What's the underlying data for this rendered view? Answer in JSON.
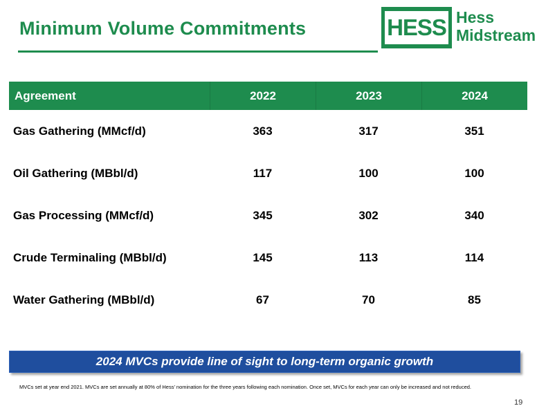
{
  "header": {
    "title": "Minimum Volume Commitments",
    "logo": {
      "box_text": "HESS",
      "line1": "Hess",
      "line2": "Midstream"
    }
  },
  "table": {
    "columns": [
      "Agreement",
      "2022",
      "2023",
      "2024"
    ],
    "rows": [
      [
        "Gas Gathering (MMcf/d)",
        "363",
        "317",
        "351"
      ],
      [
        "Oil Gathering (MBbl/d)",
        "117",
        "100",
        "100"
      ],
      [
        "Gas Processing (MMcf/d)",
        "345",
        "302",
        "340"
      ],
      [
        "Crude Terminaling (MBbl/d)",
        "145",
        "113",
        "114"
      ],
      [
        "Water Gathering (MBbl/d)",
        "67",
        "70",
        "85"
      ]
    ]
  },
  "callout": "2024 MVCs provide line of sight to long-term organic growth",
  "footnote": "MVCs set at year end 2021. MVCs are set annually at 80% of Hess’ nomination for the three years following each nomination. Once set, MVCs for each year can only be increased and not reduced.",
  "page_number": "19",
  "colors": {
    "brand_green": "#1e8c4e",
    "callout_blue": "#1f4e9e"
  }
}
